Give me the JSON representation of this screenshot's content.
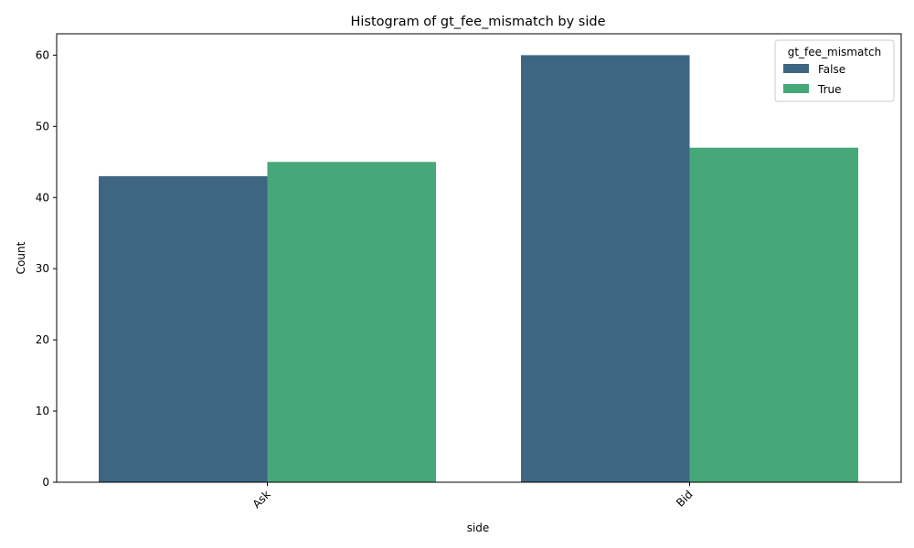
{
  "chart_data": {
    "type": "bar",
    "title": "Histogram of gt_fee_mismatch by side",
    "xlabel": "side",
    "ylabel": "Count",
    "categories": [
      "Ask",
      "Bid"
    ],
    "series": [
      {
        "name": "False",
        "values": [
          43,
          60
        ],
        "color": "#3e6683"
      },
      {
        "name": "True",
        "values": [
          45,
          47
        ],
        "color": "#46a878"
      }
    ],
    "ylim": [
      0,
      63
    ],
    "yticks": [
      0,
      10,
      20,
      30,
      40,
      50,
      60
    ],
    "legend": {
      "title": "gt_fee_mismatch",
      "placement": "top-right"
    },
    "grid": false
  }
}
